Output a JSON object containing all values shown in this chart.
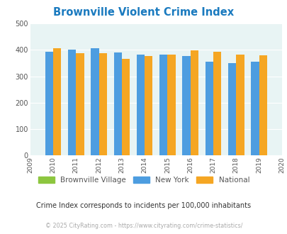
{
  "title": "Brownville Violent Crime Index",
  "years": [
    2009,
    2010,
    2011,
    2012,
    2013,
    2014,
    2015,
    2016,
    2017,
    2018,
    2019,
    2020
  ],
  "brownville_village": [
    0,
    0,
    0,
    0,
    0,
    0,
    0,
    0,
    0,
    0,
    0,
    0
  ],
  "new_york": [
    0,
    393,
    400,
    405,
    391,
    383,
    381,
    377,
    356,
    351,
    356,
    0
  ],
  "national": [
    0,
    407,
    387,
    387,
    367,
    376,
    383,
    397,
    394,
    381,
    379,
    0
  ],
  "bar_width": 0.35,
  "ylim": [
    0,
    500
  ],
  "yticks": [
    0,
    100,
    200,
    300,
    400,
    500
  ],
  "color_village": "#8dc63f",
  "color_ny": "#4d9de0",
  "color_national": "#f5a623",
  "bg_color": "#e8f4f4",
  "title_color": "#1a7abf",
  "label_color": "#555555",
  "subtitle": "Crime Index corresponds to incidents per 100,000 inhabitants",
  "footer": "© 2025 CityRating.com - https://www.cityrating.com/crime-statistics/",
  "legend_labels": [
    "Brownville Village",
    "New York",
    "National"
  ]
}
